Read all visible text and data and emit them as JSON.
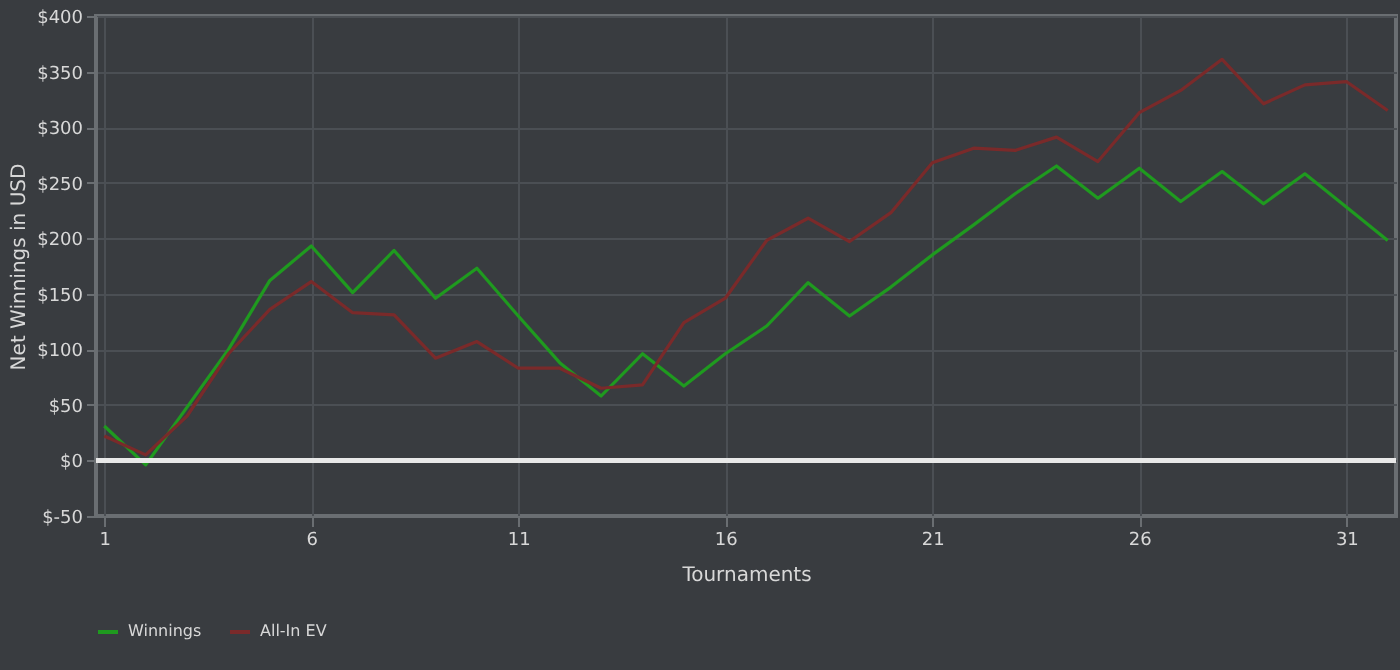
{
  "chart_data": {
    "type": "line",
    "xlabel": "Tournaments",
    "ylabel": "Net Winnings in USD",
    "x": [
      1,
      2,
      3,
      4,
      5,
      6,
      7,
      8,
      9,
      10,
      11,
      12,
      13,
      14,
      15,
      16,
      17,
      18,
      19,
      20,
      21,
      22,
      23,
      24,
      25,
      26,
      27,
      28,
      29,
      30,
      31,
      32
    ],
    "series": [
      {
        "name": "Winnings",
        "color": "#1f9a1f",
        "values": [
          31,
          -4,
          48,
          100,
          162,
          193,
          151,
          189,
          146,
          173,
          130,
          88,
          58,
          96,
          67,
          96,
          121,
          160,
          130,
          156,
          185,
          212,
          240,
          265,
          236,
          263,
          233,
          260,
          231,
          258,
          228,
          198
        ]
      },
      {
        "name": "All-In EV",
        "color": "#7a2a2a",
        "values": [
          22,
          5,
          40,
          96,
          136,
          161,
          133,
          131,
          92,
          107,
          83,
          83,
          65,
          68,
          124,
          146,
          198,
          218,
          197,
          223,
          268,
          281,
          279,
          291,
          269,
          313,
          333,
          361,
          321,
          338,
          341,
          315
        ]
      }
    ],
    "xlim": [
      0.8,
      32.2
    ],
    "xticks": [
      1,
      6,
      11,
      16,
      21,
      26,
      31
    ],
    "ylim": [
      -50,
      400
    ],
    "yticks": [
      {
        "value": -50,
        "label": "$-50"
      },
      {
        "value": 0,
        "label": "$0"
      },
      {
        "value": 50,
        "label": "$50"
      },
      {
        "value": 100,
        "label": "$100"
      },
      {
        "value": 150,
        "label": "$150"
      },
      {
        "value": 200,
        "label": "$200"
      },
      {
        "value": 250,
        "label": "$250"
      },
      {
        "value": 300,
        "label": "$300"
      },
      {
        "value": 350,
        "label": "$350"
      },
      {
        "value": 400,
        "label": "$400"
      }
    ],
    "ref_lines": [
      {
        "axis": "y",
        "value": 0,
        "color": "#e8e8e8"
      }
    ],
    "grid": true,
    "legend": "bottom",
    "marker": "none",
    "line_style": "solid"
  }
}
